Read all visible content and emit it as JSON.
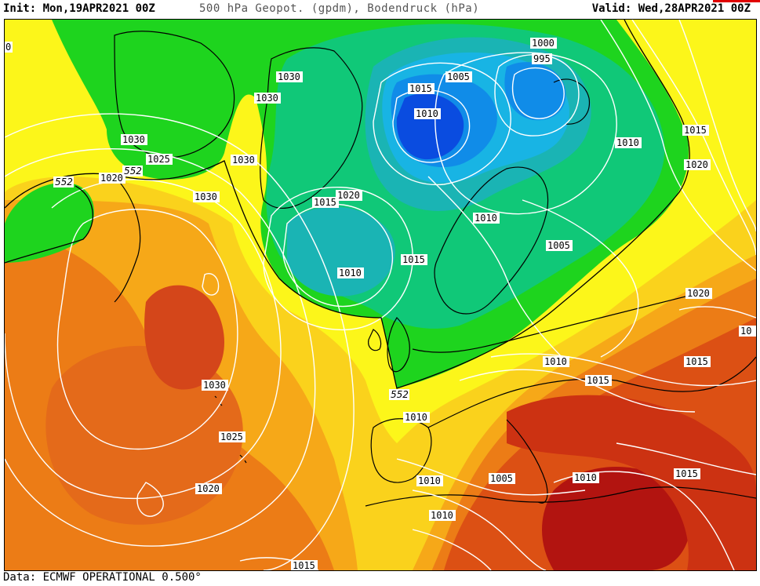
{
  "header": {
    "init": "Init: Mon,19APR2021 00Z",
    "title": "500 hPa Geopot. (gpdm), Bodendruck (hPa)",
    "valid": "Valid: Wed,28APR2021 00Z"
  },
  "footer": {
    "source": "Data: ECMWF OPERATIONAL 0.500°"
  },
  "isobar_labels": [
    "1030",
    "1025",
    "1020",
    "1030",
    "1030",
    "1030",
    "1030",
    "1020",
    "1015",
    "1015",
    "1010",
    "1005",
    "1000",
    "995",
    "1010",
    "1015",
    "1020",
    "1010",
    "1005",
    "1010",
    "1015",
    "1020",
    "1010",
    "1030",
    "1025",
    "1020",
    "1010",
    "1010",
    "1005",
    "1010",
    "1015",
    "1015",
    "1010",
    "1015",
    "10",
    "1020",
    "1015",
    "0"
  ],
  "geopotential_labels": [
    "552",
    "552",
    "552"
  ],
  "colors": {
    "deep_red": "#b21410",
    "red": "#cc3212",
    "red_orange": "#dc5014",
    "orange": "#ec7c16",
    "light_orange": "#f6a818",
    "amber": "#fad21c",
    "yellow": "#fcf61a",
    "green": "#1ed41e",
    "teal_green": "#10c878",
    "teal": "#1ab4b4",
    "cyan": "#18b4e4",
    "light_blue": "#108ce8",
    "blue": "#0a4ce0",
    "contour_white": "#ffffff",
    "coastline_black": "#000000"
  }
}
